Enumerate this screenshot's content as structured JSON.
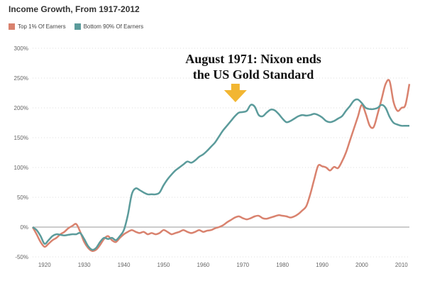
{
  "chart_data": {
    "type": "line",
    "title": "Income Growth, From 1917-2012",
    "xlabel": "",
    "ylabel": "",
    "xlim": [
      1917,
      2012
    ],
    "ylim": [
      -50,
      300
    ],
    "x_ticks": [
      1920,
      1930,
      1940,
      1950,
      1960,
      1970,
      1980,
      1990,
      2000,
      2010
    ],
    "y_ticks": [
      -50,
      0,
      50,
      100,
      150,
      200,
      250,
      300
    ],
    "y_tick_labels": [
      "-50%",
      "0%",
      "50%",
      "100%",
      "150%",
      "200%",
      "250%",
      "300%"
    ],
    "grid": "horizontal dotted",
    "legend_position": "top-left",
    "annotation": {
      "lines": [
        "August 1971: Nixon ends",
        "the US Gold Standard"
      ],
      "x": 1971,
      "arrow_color": "#f2b632"
    },
    "series": [
      {
        "name": "Top 1% Of Earners",
        "color": "#d9826e",
        "x": [
          1917,
          1918,
          1919,
          1920,
          1921,
          1922,
          1923,
          1924,
          1925,
          1926,
          1927,
          1928,
          1929,
          1930,
          1931,
          1932,
          1933,
          1934,
          1935,
          1936,
          1937,
          1938,
          1939,
          1940,
          1941,
          1942,
          1943,
          1944,
          1945,
          1946,
          1947,
          1948,
          1949,
          1950,
          1951,
          1952,
          1953,
          1954,
          1955,
          1956,
          1957,
          1958,
          1959,
          1960,
          1961,
          1962,
          1963,
          1964,
          1965,
          1966,
          1967,
          1968,
          1969,
          1970,
          1971,
          1972,
          1973,
          1974,
          1975,
          1976,
          1977,
          1978,
          1979,
          1980,
          1981,
          1982,
          1983,
          1984,
          1985,
          1986,
          1987,
          1988,
          1989,
          1990,
          1991,
          1992,
          1993,
          1994,
          1995,
          1996,
          1997,
          1998,
          1999,
          2000,
          2001,
          2002,
          2003,
          2004,
          2005,
          2006,
          2007,
          2008,
          2009,
          2010,
          2011,
          2012
        ],
        "values": [
          0,
          -12,
          -25,
          -33,
          -28,
          -22,
          -18,
          -12,
          -8,
          -2,
          2,
          5,
          -8,
          -25,
          -35,
          -40,
          -38,
          -30,
          -20,
          -15,
          -22,
          -25,
          -18,
          -12,
          -8,
          -5,
          -8,
          -10,
          -8,
          -12,
          -10,
          -12,
          -10,
          -5,
          -8,
          -12,
          -10,
          -8,
          -5,
          -8,
          -10,
          -8,
          -5,
          -8,
          -6,
          -5,
          -2,
          0,
          3,
          8,
          12,
          16,
          18,
          15,
          13,
          15,
          18,
          19,
          15,
          14,
          16,
          18,
          20,
          19,
          18,
          16,
          18,
          22,
          28,
          35,
          55,
          80,
          103,
          102,
          100,
          95,
          101,
          99,
          110,
          125,
          145,
          165,
          185,
          205,
          190,
          170,
          168,
          190,
          215,
          240,
          245,
          210,
          195,
          200,
          205,
          240
        ]
      },
      {
        "name": "Bottom 90% Of Earners",
        "color": "#5b9b9b",
        "x": [
          1917,
          1918,
          1919,
          1920,
          1921,
          1922,
          1923,
          1924,
          1925,
          1926,
          1927,
          1928,
          1929,
          1930,
          1931,
          1932,
          1933,
          1934,
          1935,
          1936,
          1937,
          1938,
          1939,
          1940,
          1941,
          1942,
          1943,
          1944,
          1945,
          1946,
          1947,
          1948,
          1949,
          1950,
          1951,
          1952,
          1953,
          1954,
          1955,
          1956,
          1957,
          1958,
          1959,
          1960,
          1961,
          1962,
          1963,
          1964,
          1965,
          1966,
          1967,
          1968,
          1969,
          1970,
          1971,
          1972,
          1973,
          1974,
          1975,
          1976,
          1977,
          1978,
          1979,
          1980,
          1981,
          1982,
          1983,
          1984,
          1985,
          1986,
          1987,
          1988,
          1989,
          1990,
          1991,
          1992,
          1993,
          1994,
          1995,
          1996,
          1997,
          1998,
          1999,
          2000,
          2001,
          2002,
          2003,
          2004,
          2005,
          2006,
          2007,
          2008,
          2009,
          2010,
          2011,
          2012
        ],
        "values": [
          0,
          -5,
          -15,
          -28,
          -22,
          -15,
          -12,
          -13,
          -14,
          -13,
          -12,
          -12,
          -10,
          -20,
          -32,
          -38,
          -35,
          -25,
          -18,
          -20,
          -18,
          -22,
          -15,
          -5,
          20,
          55,
          65,
          62,
          58,
          55,
          55,
          55,
          58,
          70,
          80,
          88,
          95,
          100,
          105,
          110,
          108,
          112,
          118,
          122,
          128,
          135,
          142,
          152,
          162,
          170,
          178,
          186,
          192,
          193,
          195,
          205,
          202,
          188,
          186,
          192,
          197,
          196,
          190,
          182,
          176,
          178,
          182,
          186,
          188,
          187,
          188,
          190,
          188,
          184,
          178,
          176,
          178,
          182,
          186,
          195,
          203,
          212,
          214,
          208,
          200,
          198,
          198,
          200,
          205,
          200,
          185,
          175,
          172,
          170,
          170,
          170
        ]
      }
    ]
  }
}
